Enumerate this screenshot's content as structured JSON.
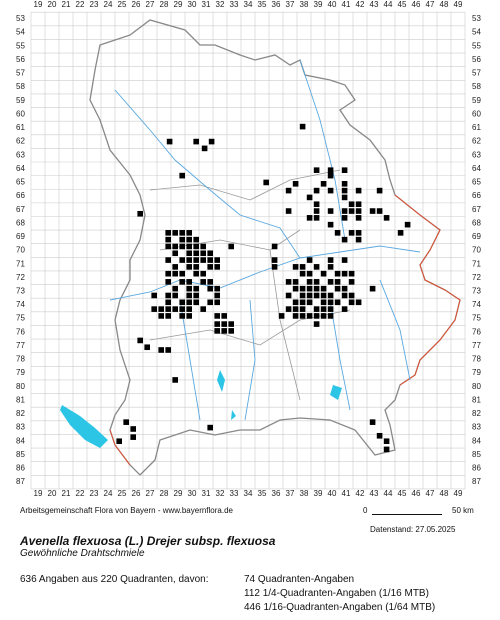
{
  "map": {
    "columns": [
      19,
      20,
      21,
      22,
      23,
      24,
      25,
      26,
      27,
      28,
      29,
      30,
      31,
      32,
      33,
      34,
      35,
      36,
      37,
      38,
      39,
      40,
      41,
      42,
      43,
      44,
      45,
      46,
      47,
      48,
      49
    ],
    "rows": [
      53,
      54,
      55,
      56,
      57,
      58,
      59,
      60,
      61,
      62,
      63,
      64,
      65,
      66,
      67,
      68,
      69,
      70,
      71,
      72,
      73,
      74,
      75,
      76,
      77,
      78,
      79,
      80,
      81,
      82,
      83,
      84,
      85,
      86,
      87
    ],
    "records": [
      [
        28.4,
        62
      ],
      [
        30.3,
        62
      ],
      [
        30.9,
        62.5
      ],
      [
        31.4,
        62
      ],
      [
        37.9,
        60.9
      ],
      [
        29.3,
        64.5
      ],
      [
        26.3,
        67.3
      ],
      [
        35.3,
        65
      ],
      [
        38.9,
        64.1
      ],
      [
        39.9,
        64.1
      ],
      [
        40.9,
        64.1
      ],
      [
        39.9,
        64.5
      ],
      [
        39.4,
        65.1
      ],
      [
        40.9,
        65.1
      ],
      [
        37.4,
        65.1
      ],
      [
        38.9,
        65.6
      ],
      [
        39.9,
        65.6
      ],
      [
        40.9,
        65.6
      ],
      [
        41.9,
        65.6
      ],
      [
        43.4,
        65.6
      ],
      [
        36.9,
        65.6
      ],
      [
        38.4,
        66.1
      ],
      [
        40.9,
        66.1
      ],
      [
        38.9,
        66.6
      ],
      [
        41.4,
        66.6
      ],
      [
        41.9,
        66.6
      ],
      [
        38.9,
        67.1
      ],
      [
        39.9,
        67.1
      ],
      [
        40.9,
        67.1
      ],
      [
        41.4,
        67.1
      ],
      [
        41.9,
        67.1
      ],
      [
        42.9,
        67.1
      ],
      [
        43.4,
        67.1
      ],
      [
        36.9,
        67.1
      ],
      [
        38.4,
        67.6
      ],
      [
        38.9,
        67.6
      ],
      [
        40.9,
        67.6
      ],
      [
        41.9,
        67.6
      ],
      [
        43.9,
        67.6
      ],
      [
        39.9,
        68.1
      ],
      [
        45.4,
        68.1
      ],
      [
        40.4,
        68.7
      ],
      [
        41.4,
        68.7
      ],
      [
        41.9,
        68.7
      ],
      [
        44.9,
        68.7
      ],
      [
        40.9,
        69.2
      ],
      [
        41.9,
        69.2
      ],
      [
        28.3,
        68.7
      ],
      [
        28.8,
        68.7
      ],
      [
        29.3,
        68.7
      ],
      [
        29.8,
        68.7
      ],
      [
        28.3,
        69.2
      ],
      [
        29.3,
        69.2
      ],
      [
        29.8,
        69.2
      ],
      [
        30.3,
        69.2
      ],
      [
        28.3,
        69.7
      ],
      [
        28.8,
        69.7
      ],
      [
        29.3,
        69.7
      ],
      [
        29.8,
        69.7
      ],
      [
        30.3,
        69.7
      ],
      [
        30.8,
        69.7
      ],
      [
        32.8,
        69.7
      ],
      [
        28.8,
        70.2
      ],
      [
        29.8,
        70.2
      ],
      [
        30.3,
        70.2
      ],
      [
        30.8,
        70.2
      ],
      [
        31.3,
        70.2
      ],
      [
        28.3,
        70.7
      ],
      [
        29.3,
        70.7
      ],
      [
        29.8,
        70.7
      ],
      [
        30.3,
        70.7
      ],
      [
        30.8,
        70.7
      ],
      [
        31.3,
        70.7
      ],
      [
        31.8,
        70.7
      ],
      [
        28.8,
        71.2
      ],
      [
        29.8,
        71.2
      ],
      [
        30.3,
        71.2
      ],
      [
        31.3,
        71.2
      ],
      [
        31.8,
        71.2
      ],
      [
        28.3,
        71.7
      ],
      [
        28.8,
        71.7
      ],
      [
        29.3,
        71.7
      ],
      [
        30.3,
        71.7
      ],
      [
        30.8,
        71.7
      ],
      [
        28.3,
        72.3
      ],
      [
        29.3,
        72.3
      ],
      [
        29.8,
        72.3
      ],
      [
        30.8,
        72.3
      ],
      [
        31.3,
        72.3
      ],
      [
        28.8,
        72.8
      ],
      [
        29.8,
        72.8
      ],
      [
        30.3,
        72.8
      ],
      [
        31.3,
        72.8
      ],
      [
        31.8,
        72.8
      ],
      [
        27.3,
        73.3
      ],
      [
        28.3,
        73.3
      ],
      [
        28.8,
        73.3
      ],
      [
        29.8,
        73.3
      ],
      [
        30.3,
        73.3
      ],
      [
        31.8,
        73.3
      ],
      [
        28.3,
        73.8
      ],
      [
        29.3,
        73.8
      ],
      [
        29.8,
        73.8
      ],
      [
        30.3,
        73.8
      ],
      [
        31.3,
        73.8
      ],
      [
        31.8,
        73.8
      ],
      [
        27.3,
        74.3
      ],
      [
        27.8,
        74.3
      ],
      [
        28.3,
        74.3
      ],
      [
        28.8,
        74.3
      ],
      [
        29.3,
        74.3
      ],
      [
        29.8,
        74.3
      ],
      [
        30.8,
        74.3
      ],
      [
        27.8,
        74.8
      ],
      [
        28.3,
        74.8
      ],
      [
        29.3,
        74.8
      ],
      [
        29.8,
        74.8
      ],
      [
        31.8,
        74.8
      ],
      [
        32.3,
        74.8
      ],
      [
        31.8,
        75.4
      ],
      [
        32.3,
        75.4
      ],
      [
        32.8,
        75.4
      ],
      [
        31.8,
        75.9
      ],
      [
        32.3,
        75.9
      ],
      [
        32.8,
        75.9
      ],
      [
        35.9,
        69.7
      ],
      [
        35.9,
        70.7
      ],
      [
        35.9,
        71.2
      ],
      [
        38.4,
        70.7
      ],
      [
        39.9,
        70.7
      ],
      [
        40.9,
        70.7
      ],
      [
        37.4,
        71.2
      ],
      [
        37.9,
        71.2
      ],
      [
        38.9,
        71.2
      ],
      [
        39.9,
        71.2
      ],
      [
        37.9,
        71.7
      ],
      [
        38.4,
        71.7
      ],
      [
        39.4,
        71.7
      ],
      [
        40.4,
        71.7
      ],
      [
        40.9,
        71.7
      ],
      [
        41.4,
        71.7
      ],
      [
        36.9,
        72.3
      ],
      [
        37.4,
        72.3
      ],
      [
        38.4,
        72.3
      ],
      [
        38.9,
        72.3
      ],
      [
        39.9,
        72.3
      ],
      [
        40.4,
        72.3
      ],
      [
        41.4,
        72.3
      ],
      [
        37.4,
        72.8
      ],
      [
        37.9,
        72.8
      ],
      [
        38.4,
        72.8
      ],
      [
        38.9,
        72.8
      ],
      [
        39.4,
        72.8
      ],
      [
        40.4,
        72.8
      ],
      [
        40.9,
        72.8
      ],
      [
        42.9,
        72.8
      ],
      [
        36.9,
        73.3
      ],
      [
        37.9,
        73.3
      ],
      [
        38.4,
        73.3
      ],
      [
        38.9,
        73.3
      ],
      [
        39.4,
        73.3
      ],
      [
        39.9,
        73.3
      ],
      [
        40.9,
        73.3
      ],
      [
        41.4,
        73.3
      ],
      [
        37.4,
        73.8
      ],
      [
        37.9,
        73.8
      ],
      [
        38.4,
        73.8
      ],
      [
        39.4,
        73.8
      ],
      [
        39.9,
        73.8
      ],
      [
        40.4,
        73.8
      ],
      [
        41.4,
        73.8
      ],
      [
        41.9,
        73.8
      ],
      [
        36.9,
        74.3
      ],
      [
        37.4,
        74.3
      ],
      [
        37.9,
        74.3
      ],
      [
        38.9,
        74.3
      ],
      [
        39.4,
        74.3
      ],
      [
        39.9,
        74.3
      ],
      [
        40.9,
        74.3
      ],
      [
        36.4,
        74.8
      ],
      [
        37.4,
        74.8
      ],
      [
        37.9,
        74.8
      ],
      [
        38.4,
        74.8
      ],
      [
        38.9,
        74.8
      ],
      [
        39.4,
        74.8
      ],
      [
        39.9,
        74.8
      ],
      [
        38.9,
        75.4
      ],
      [
        26.3,
        76.6
      ],
      [
        26.8,
        77.1
      ],
      [
        27.8,
        77.3
      ],
      [
        28.3,
        77.3
      ],
      [
        28.8,
        79.5
      ],
      [
        31.3,
        83
      ],
      [
        25.3,
        82.6
      ],
      [
        25.8,
        83.1
      ],
      [
        24.8,
        84
      ],
      [
        25.8,
        83.7
      ],
      [
        42.9,
        82.6
      ],
      [
        43.4,
        83.6
      ],
      [
        43.9,
        84
      ],
      [
        43.9,
        84.6
      ]
    ]
  },
  "footer": {
    "credit": "Arbeitsgemeinschaft Flora von Bayern - www.bayernflora.de",
    "scale_start": "0",
    "scale_end": "50 km",
    "date": "Datenstand: 27.05.2025",
    "title": "Avenella flexuosa (L.) Drejer subsp. flexuosa",
    "subtitle": "Gewöhnliche Drahtschmiele",
    "summary": "636 Angaben aus 220 Quadranten, davon:",
    "counts": [
      "74 Quadranten-Angaben",
      "112 1/4-Quadranten-Angaben (1/16 MTB)",
      "446 1/16-Quadranten-Angaben (1/64 MTB)"
    ]
  }
}
